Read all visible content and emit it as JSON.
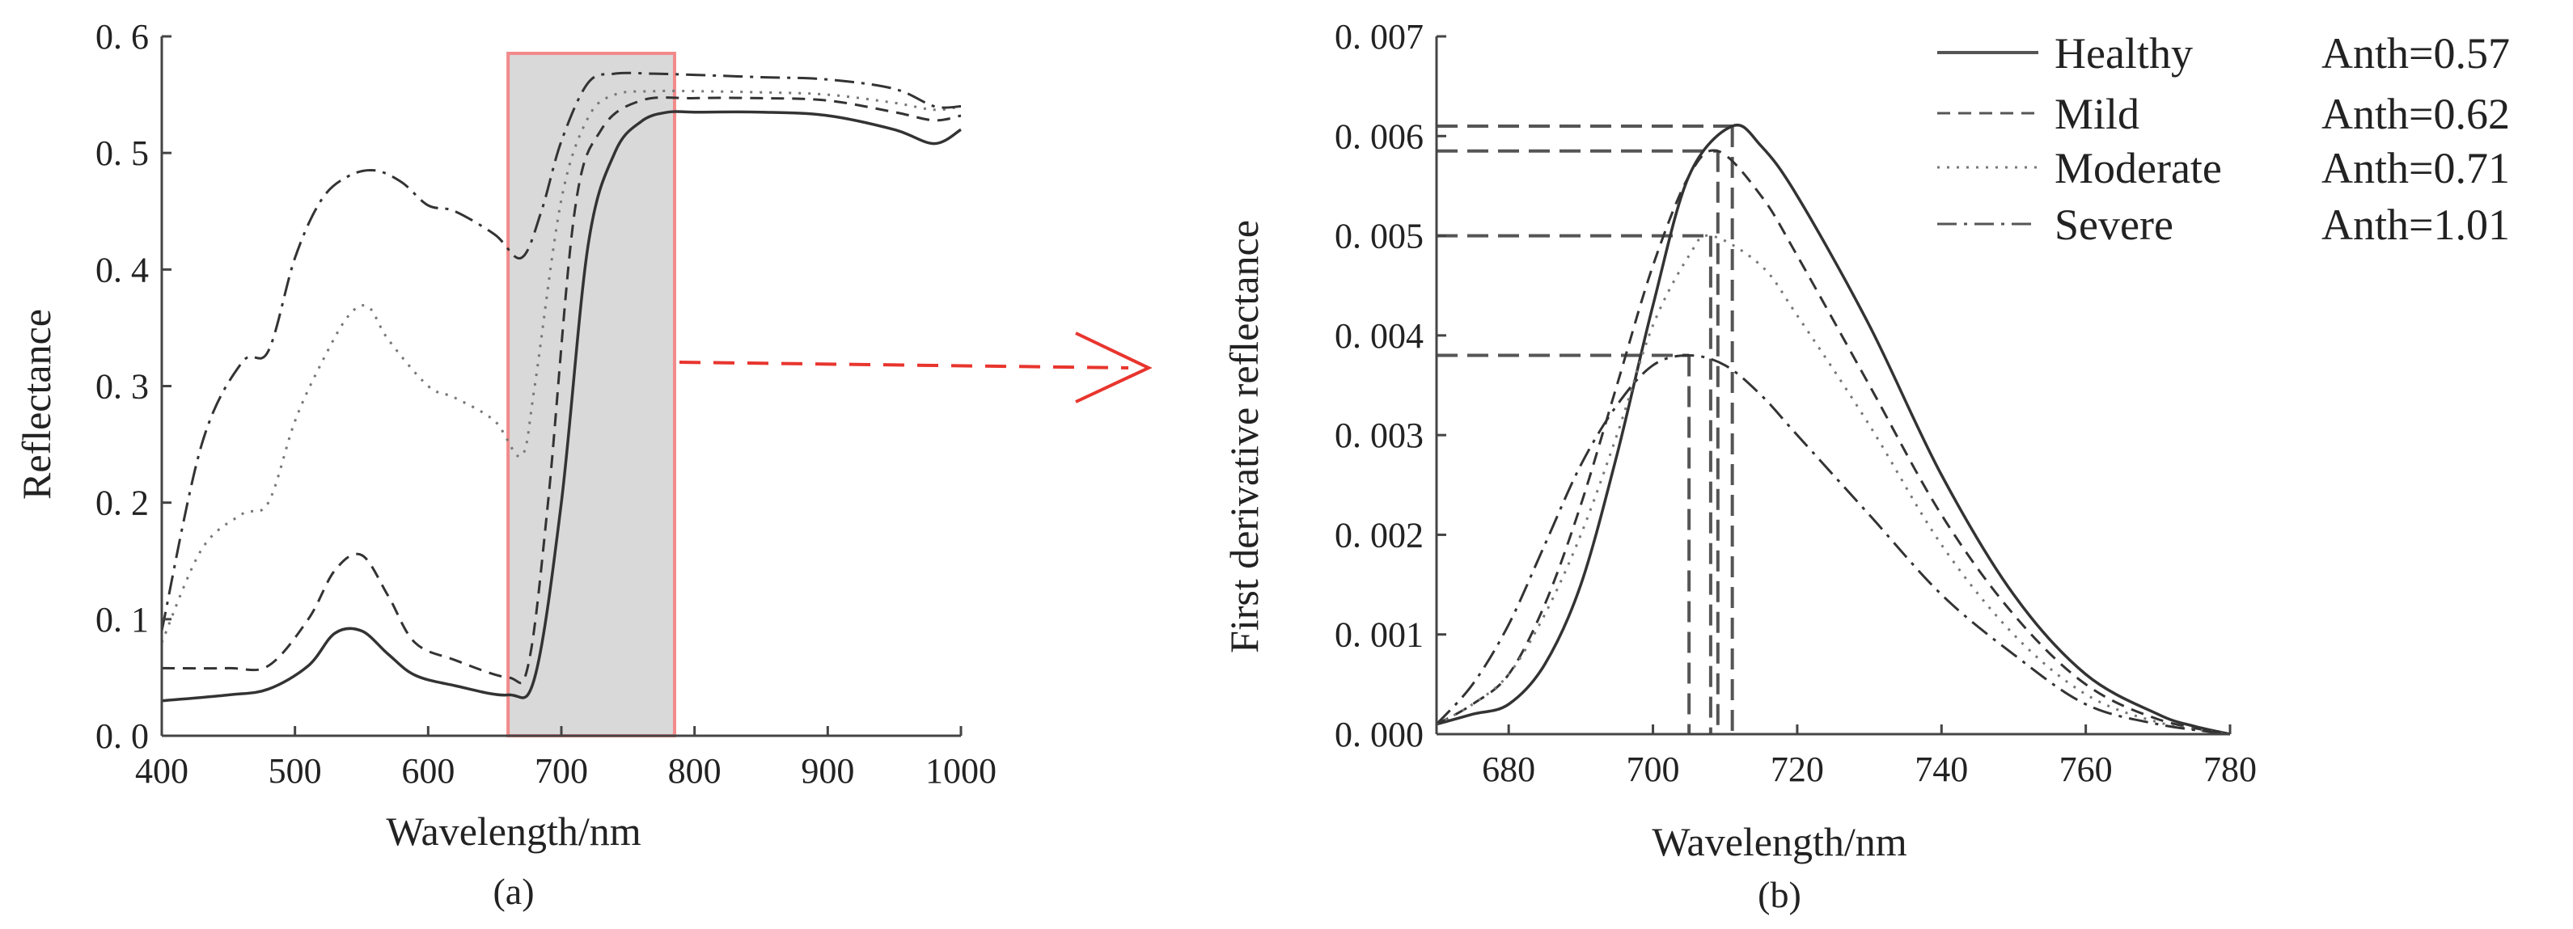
{
  "chart_data": [
    {
      "panel_label": "(a)",
      "type": "line",
      "xlabel": "Wavelength/nm",
      "ylabel": "Reflectance",
      "xlim": [
        400,
        1000
      ],
      "ylim": [
        0.0,
        0.6
      ],
      "xticks": [
        400,
        500,
        600,
        700,
        800,
        900,
        1000
      ],
      "yticks": [
        "0. 0",
        "0. 1",
        "0. 2",
        "0. 3",
        "0. 4",
        "0. 5",
        "0. 6"
      ],
      "yticks_values": [
        0,
        0.1,
        0.2,
        0.3,
        0.4,
        0.5,
        0.6
      ],
      "highlight_range": [
        660,
        785
      ],
      "series": [
        {
          "name": "Healthy",
          "style": "solid",
          "x": [
            400,
            450,
            480,
            510,
            530,
            550,
            570,
            590,
            620,
            660,
            680,
            700,
            720,
            740,
            760,
            780,
            800,
            850,
            900,
            950,
            980,
            1000
          ],
          "y": [
            0.03,
            0.035,
            0.04,
            0.06,
            0.088,
            0.09,
            0.07,
            0.052,
            0.043,
            0.035,
            0.05,
            0.2,
            0.42,
            0.5,
            0.527,
            0.535,
            0.535,
            0.535,
            0.532,
            0.52,
            0.508,
            0.52
          ]
        },
        {
          "name": "Mild",
          "style": "dashed",
          "x": [
            400,
            450,
            480,
            510,
            530,
            550,
            570,
            590,
            620,
            660,
            675,
            690,
            710,
            730,
            760,
            800,
            850,
            900,
            950,
            980,
            1000
          ],
          "y": [
            0.058,
            0.058,
            0.06,
            0.1,
            0.142,
            0.155,
            0.12,
            0.08,
            0.065,
            0.05,
            0.06,
            0.2,
            0.45,
            0.52,
            0.545,
            0.547,
            0.547,
            0.545,
            0.535,
            0.528,
            0.532
          ]
        },
        {
          "name": "Moderate",
          "style": "dotted",
          "x": [
            400,
            430,
            460,
            480,
            500,
            520,
            540,
            555,
            570,
            600,
            620,
            650,
            670,
            680,
            700,
            720,
            740,
            770,
            800,
            850,
            900,
            950,
            980,
            1000
          ],
          "y": [
            0.08,
            0.16,
            0.19,
            0.2,
            0.27,
            0.32,
            0.36,
            0.368,
            0.34,
            0.3,
            0.29,
            0.27,
            0.24,
            0.3,
            0.46,
            0.53,
            0.55,
            0.553,
            0.553,
            0.552,
            0.55,
            0.543,
            0.537,
            0.54
          ]
        },
        {
          "name": "Severe",
          "style": "dashdot",
          "x": [
            400,
            430,
            460,
            480,
            500,
            520,
            540,
            560,
            580,
            600,
            620,
            650,
            670,
            685,
            700,
            720,
            740,
            770,
            800,
            850,
            900,
            950,
            980,
            1000
          ],
          "y": [
            0.09,
            0.25,
            0.32,
            0.33,
            0.41,
            0.46,
            0.48,
            0.485,
            0.475,
            0.455,
            0.45,
            0.43,
            0.41,
            0.45,
            0.51,
            0.56,
            0.568,
            0.568,
            0.567,
            0.565,
            0.563,
            0.555,
            0.54,
            0.54
          ]
        }
      ]
    },
    {
      "panel_label": "(b)",
      "type": "line",
      "xlabel": "Wavelength/nm",
      "ylabel": "First derivative reflectance",
      "xlim": [
        670,
        780
      ],
      "ylim": [
        0.0,
        0.007
      ],
      "xticks": [
        680,
        700,
        720,
        740,
        760,
        780
      ],
      "yticks": [
        "0. 000",
        "0. 001",
        "0. 002",
        "0. 003",
        "0. 004",
        "0. 005",
        "0. 006",
        "0. 007"
      ],
      "yticks_values": [
        0,
        0.001,
        0.002,
        0.003,
        0.004,
        0.005,
        0.006,
        0.007
      ],
      "series": [
        {
          "name": "Healthy",
          "style": "solid",
          "anth": "Anth=0.57",
          "peak_x": 711,
          "peak_y": 0.0061,
          "x": [
            670,
            675,
            680,
            685,
            690,
            695,
            700,
            705,
            711,
            715,
            720,
            730,
            740,
            750,
            760,
            770,
            775,
            780
          ],
          "y": [
            0.0001,
            0.0002,
            0.0003,
            0.0007,
            0.0015,
            0.0028,
            0.0043,
            0.0056,
            0.0061,
            0.0059,
            0.0054,
            0.0041,
            0.0026,
            0.0014,
            0.0006,
            0.0002,
            8e-05,
            0.0
          ]
        },
        {
          "name": "Mild",
          "style": "dashed",
          "anth": "Anth=0.62",
          "peak_x": 709,
          "peak_y": 0.00585,
          "x": [
            670,
            675,
            680,
            685,
            690,
            695,
            700,
            705,
            709,
            715,
            720,
            730,
            740,
            750,
            760,
            770,
            780
          ],
          "y": [
            0.0001,
            0.0003,
            0.0006,
            0.0013,
            0.0023,
            0.0035,
            0.0047,
            0.0056,
            0.00585,
            0.0054,
            0.0048,
            0.0035,
            0.0022,
            0.0012,
            0.0005,
            0.00015,
            0.0
          ]
        },
        {
          "name": "Moderate",
          "style": "dotted",
          "anth": "Anth=0.71",
          "peak_x": 708,
          "peak_y": 0.005,
          "x": [
            670,
            675,
            680,
            685,
            690,
            695,
            700,
            705,
            708,
            715,
            720,
            730,
            740,
            750,
            760,
            770,
            780
          ],
          "y": [
            0.0001,
            0.0003,
            0.0006,
            0.0012,
            0.002,
            0.003,
            0.0041,
            0.0048,
            0.005,
            0.0047,
            0.0042,
            0.0031,
            0.0019,
            0.001,
            0.0004,
            0.00012,
            0.0
          ]
        },
        {
          "name": "Severe",
          "style": "dashdot",
          "anth": "Anth=1.01",
          "peak_x": 705,
          "peak_y": 0.0038,
          "x": [
            670,
            675,
            680,
            685,
            690,
            695,
            700,
            705,
            710,
            715,
            720,
            730,
            740,
            750,
            760,
            770,
            780
          ],
          "y": [
            0.0001,
            0.0005,
            0.0011,
            0.0019,
            0.0027,
            0.0033,
            0.0037,
            0.0038,
            0.0037,
            0.0034,
            0.003,
            0.0022,
            0.0014,
            0.0008,
            0.0003,
            0.0001,
            0.0
          ]
        }
      ]
    }
  ]
}
